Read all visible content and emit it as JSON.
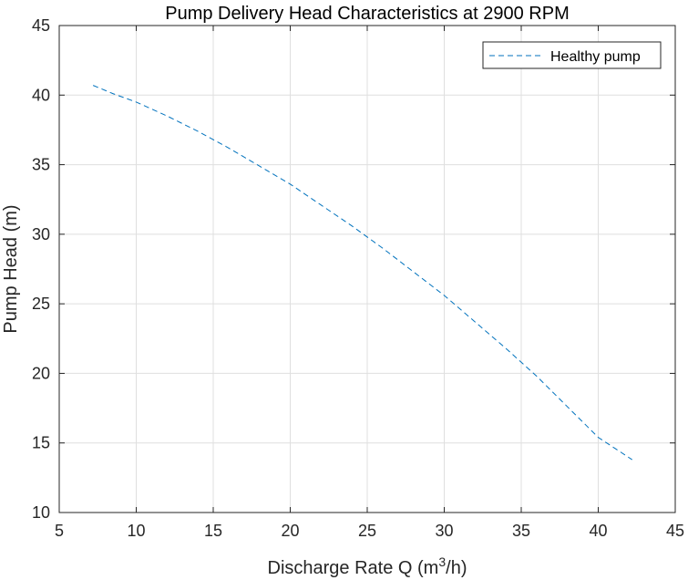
{
  "chart_data": {
    "type": "line",
    "title": "Pump Delivery Head Characteristics at 2900 RPM",
    "xlabel": "Discharge Rate Q (m",
    "xlabel_sup": "3",
    "xlabel_tail": "/h)",
    "ylabel": "Pump Head (m)",
    "xlim": [
      5,
      45
    ],
    "ylim": [
      10,
      45
    ],
    "xticks": [
      5,
      10,
      15,
      20,
      25,
      30,
      35,
      40,
      45
    ],
    "yticks": [
      10,
      15,
      20,
      25,
      30,
      35,
      40,
      45
    ],
    "grid": true,
    "legend_position": "top-right",
    "series": [
      {
        "name": "Healthy pump",
        "color": "#0072BD",
        "line_style": "dashed",
        "x": [
          7.2,
          8.5,
          10,
          12,
          14,
          16,
          18,
          20,
          22,
          24,
          26,
          28,
          30,
          32,
          34,
          36,
          38,
          40,
          42.2
        ],
        "y": [
          40.7,
          40.1,
          39.5,
          38.5,
          37.4,
          36.2,
          34.9,
          33.6,
          32.1,
          30.6,
          29.0,
          27.3,
          25.6,
          23.7,
          21.8,
          19.8,
          17.6,
          15.4,
          13.8
        ]
      }
    ]
  }
}
